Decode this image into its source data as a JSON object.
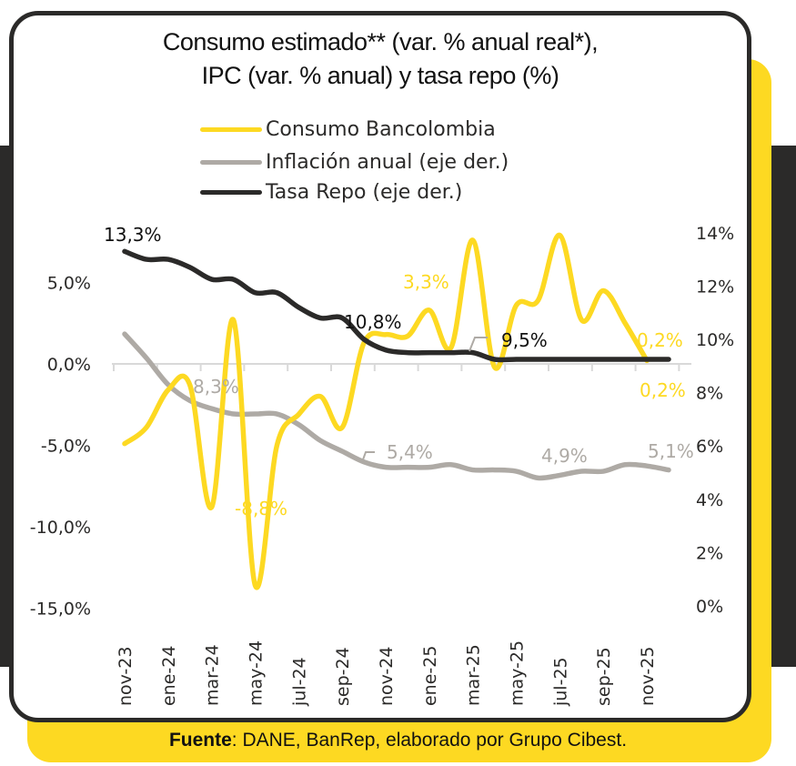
{
  "title_line1": "Consumo estimado** (var. % anual real*),",
  "title_line2": "IPC (var. % anual) y tasa repo (%)",
  "footer": {
    "bold": "Fuente",
    "text": ": DANE, BanRep, elaborado por Grupo Cibest."
  },
  "colors": {
    "yellow": "#fdd922",
    "gray": "#aeaaa5",
    "black": "#2b2a29"
  },
  "chart_data": {
    "type": "line",
    "x": [
      "nov-23",
      "dic-23",
      "ene-24",
      "feb-24",
      "mar-24",
      "abr-24",
      "may-24",
      "jun-24",
      "jul-24",
      "ago-24",
      "sep-24",
      "oct-24",
      "nov-24",
      "dic-24",
      "ene-25",
      "feb-25",
      "mar-25",
      "abr-25",
      "may-25",
      "jun-25",
      "jul-25",
      "ago-25",
      "sep-25",
      "oct-25",
      "nov-25",
      "dic-25"
    ],
    "xtick_labels": [
      "nov-23",
      "ene-24",
      "mar-24",
      "may-24",
      "jul-24",
      "sep-24",
      "nov-24",
      "ene-25",
      "mar-25",
      "may-25",
      "jul-25",
      "sep-25",
      "nov-25"
    ],
    "left_axis": {
      "ticks": [
        "5,0%",
        "0,0%",
        "-5,0%",
        "-10,0%",
        "-15,0%"
      ],
      "values": [
        5,
        0,
        -5,
        -10,
        -15
      ],
      "ylim": [
        -15,
        5
      ]
    },
    "right_axis": {
      "ticks": [
        "14%",
        "12%",
        "10%",
        "8%",
        "6%",
        "4%",
        "2%",
        "0%"
      ],
      "values": [
        14,
        12,
        10,
        8,
        6,
        4,
        2,
        0
      ],
      "ylim": [
        0,
        14
      ]
    },
    "series": [
      {
        "name": "Consumo Bancolombia",
        "axis": "left",
        "color": "#fdd922",
        "values": [
          -4.9,
          -3.9,
          -1.6,
          -1.3,
          -8.8,
          2.7,
          -13.6,
          -5.0,
          -3.1,
          -2.0,
          -3.9,
          1.3,
          1.8,
          1.7,
          3.3,
          1.0,
          7.6,
          -0.2,
          3.6,
          3.9,
          7.9,
          2.7,
          4.5,
          2.5,
          0.2,
          null
        ]
      },
      {
        "name": "Inflación anual (eje der.)",
        "axis": "right",
        "color": "#aeaaa5",
        "values": [
          10.2,
          9.3,
          8.3,
          7.7,
          7.4,
          7.2,
          7.2,
          7.2,
          6.8,
          6.2,
          5.8,
          5.4,
          5.2,
          5.2,
          5.2,
          5.3,
          5.1,
          5.1,
          5.05,
          4.8,
          4.9,
          5.05,
          5.05,
          5.3,
          5.25,
          5.1
        ]
      },
      {
        "name": "Tasa Repo (eje der.)",
        "axis": "right",
        "color": "#2b2a29",
        "values": [
          13.3,
          13.0,
          13.0,
          12.7,
          12.25,
          12.25,
          11.75,
          11.75,
          11.2,
          10.8,
          10.8,
          10.0,
          9.6,
          9.5,
          9.5,
          9.5,
          9.5,
          9.25,
          9.25,
          9.25,
          9.25,
          9.25,
          9.25,
          9.25,
          9.25,
          9.25
        ]
      }
    ],
    "annotations": [
      {
        "text": "13,3%",
        "series": "Tasa Repo (eje der.)"
      },
      {
        "text": "10,8%",
        "series": "Tasa Repo (eje der.)"
      },
      {
        "text": "9,5%",
        "series": "Tasa Repo (eje der.)"
      },
      {
        "text": "3,3%",
        "series": "Consumo Bancolombia"
      },
      {
        "text": "-8,8%",
        "series": "Consumo Bancolombia"
      },
      {
        "text": "0,2%",
        "series": "Consumo Bancolombia"
      },
      {
        "text": "0,2%",
        "series": "Consumo Bancolombia"
      },
      {
        "text": "8,3%",
        "series": "Inflación anual (eje der.)"
      },
      {
        "text": "5,4%",
        "series": "Inflación anual (eje der.)"
      },
      {
        "text": "4,9%",
        "series": "Inflación anual (eje der.)"
      },
      {
        "text": "5,1%",
        "series": "Inflación anual (eje der.)"
      }
    ],
    "legend_position": "top-center",
    "grid": false
  }
}
